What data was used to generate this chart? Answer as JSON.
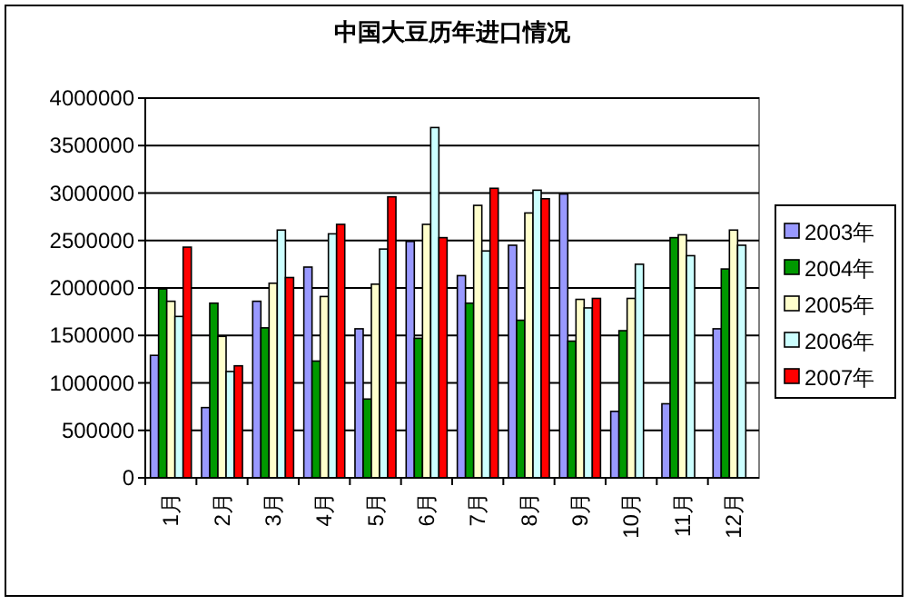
{
  "chart_data": {
    "type": "bar",
    "title": "中国大豆历年进口情况",
    "categories": [
      "1月",
      "2月",
      "3月",
      "4月",
      "5月",
      "6月",
      "7月",
      "8月",
      "9月",
      "10月",
      "11月",
      "12月"
    ],
    "series": [
      {
        "name": "2003年",
        "color": "#9999ff",
        "values": [
          1290000,
          740000,
          1860000,
          2220000,
          1570000,
          2490000,
          2130000,
          2450000,
          2990000,
          700000,
          780000,
          1570000
        ]
      },
      {
        "name": "2004年",
        "color": "#009900",
        "values": [
          1990000,
          1840000,
          1580000,
          1230000,
          830000,
          1470000,
          1840000,
          1660000,
          1440000,
          1550000,
          2530000,
          2200000
        ]
      },
      {
        "name": "2005年",
        "color": "#ffffcc",
        "values": [
          1860000,
          1490000,
          2050000,
          1910000,
          2040000,
          2670000,
          2870000,
          2790000,
          1880000,
          1890000,
          2560000,
          2610000
        ]
      },
      {
        "name": "2006年",
        "color": "#ccffff",
        "values": [
          1700000,
          1120000,
          2610000,
          2570000,
          2410000,
          3690000,
          2390000,
          3030000,
          1790000,
          2250000,
          2340000,
          2450000
        ]
      },
      {
        "name": "2007年",
        "color": "#ff0000",
        "values": [
          2430000,
          1180000,
          2110000,
          2670000,
          2960000,
          2530000,
          3050000,
          2940000,
          1890000,
          null,
          null,
          null
        ]
      }
    ],
    "ylim": [
      0,
      4000000
    ],
    "yticks": [
      0,
      500000,
      1000000,
      1500000,
      2000000,
      2500000,
      3000000,
      3500000,
      4000000
    ],
    "grid": "y",
    "legend": "right"
  }
}
